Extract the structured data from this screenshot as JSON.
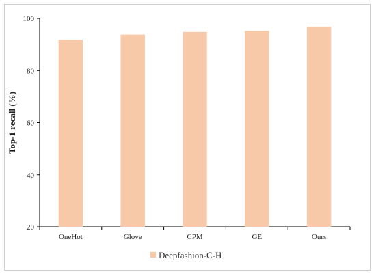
{
  "chart_data": {
    "type": "bar",
    "categories": [
      "OneHot",
      "Glove",
      "CPM",
      "GE",
      "Ours"
    ],
    "series": [
      {
        "name": "Deepfashion-C-H",
        "values": [
          91.8,
          93.8,
          94.8,
          95.2,
          96.8
        ]
      }
    ],
    "xlabel": "",
    "ylabel": "Top-1 recall (%)",
    "ylim": [
      20,
      100
    ],
    "yticks": [
      20,
      40,
      60,
      80,
      100
    ],
    "grid": false,
    "legend_position": "bottom",
    "bar_color": "#f7c9a9"
  }
}
